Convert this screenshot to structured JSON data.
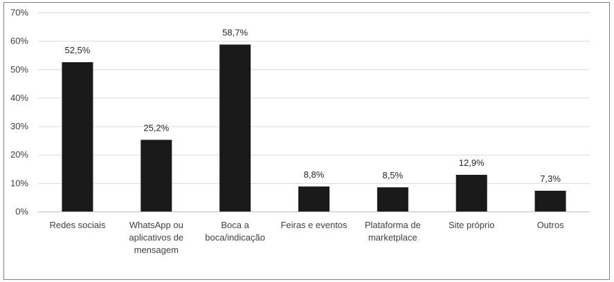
{
  "chart_data": {
    "type": "bar",
    "categories": [
      [
        "Redes sociais"
      ],
      [
        "WhatsApp ou",
        "aplicativos de",
        "mensagem"
      ],
      [
        "Boca a",
        "boca/indicação"
      ],
      [
        "Feiras e eventos"
      ],
      [
        "Plataforma de",
        "marketplace"
      ],
      [
        "Site próprio"
      ],
      [
        "Outros"
      ]
    ],
    "values": [
      52.5,
      25.2,
      58.7,
      8.8,
      8.5,
      12.9,
      7.3
    ],
    "data_labels": [
      "52,5%",
      "25,2%",
      "58,7%",
      "8,8%",
      "8,5%",
      "12,9%",
      "7,3%"
    ],
    "ylim": [
      0,
      70
    ],
    "yticks": [
      0,
      10,
      20,
      30,
      40,
      50,
      60,
      70
    ],
    "ytick_labels": [
      "0%",
      "10%",
      "20%",
      "30%",
      "40%",
      "50%",
      "60%",
      "70%"
    ],
    "grid": true,
    "legend": "none",
    "bar_color": "#1a1a1a",
    "grid_color": "#d9d9d9"
  }
}
